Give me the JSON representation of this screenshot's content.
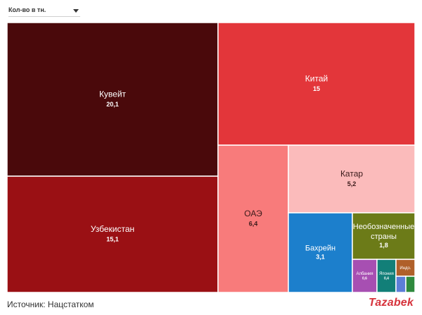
{
  "dropdown": {
    "selected": "Кол-во в тн."
  },
  "footer": {
    "source": "Источник: Нацстатком",
    "logo": "Tazabek"
  },
  "chart_data": {
    "type": "treemap",
    "title": "",
    "items": [
      {
        "name": "Кувейт",
        "value": 20.1,
        "label": "20,1",
        "color": "#4a090b",
        "text": "#ffffff"
      },
      {
        "name": "Узбекистан",
        "value": 15.1,
        "label": "15,1",
        "color": "#9a1014",
        "text": "#ffffff"
      },
      {
        "name": "Китай",
        "value": 15,
        "label": "15",
        "color": "#e3363a",
        "text": "#ffffff"
      },
      {
        "name": "ОАЭ",
        "value": 6.4,
        "label": "6,4",
        "color": "#f87b7b",
        "text": "#3a1a1a"
      },
      {
        "name": "Катар",
        "value": 5.2,
        "label": "5,2",
        "color": "#fbbbbb",
        "text": "#3a1a1a"
      },
      {
        "name": "Бахрейн",
        "value": 3.1,
        "label": "3,1",
        "color": "#1c7fcc",
        "text": "#ffffff"
      },
      {
        "name": "Необозначенные страны",
        "value": 1.8,
        "label": "1,8",
        "color": "#6c7b18",
        "text": "#ffffff"
      },
      {
        "name": "Албания",
        "value": 0.6,
        "label": "0,6",
        "color": "#a74fb2",
        "text": "#ffffff"
      },
      {
        "name": "Япония",
        "value": 0.4,
        "label": "0,4",
        "color": "#127f78",
        "text": "#ffffff"
      },
      {
        "name": "Индо.",
        "value": 0.3,
        "label": "",
        "color": "#b0602a",
        "text": "#ffffff"
      },
      {
        "name": "",
        "value": 0.15,
        "label": "",
        "color": "#5c7ed8",
        "text": "#ffffff"
      },
      {
        "name": "",
        "value": 0.15,
        "label": "",
        "color": "#2f8a3e",
        "text": "#ffffff"
      }
    ]
  }
}
